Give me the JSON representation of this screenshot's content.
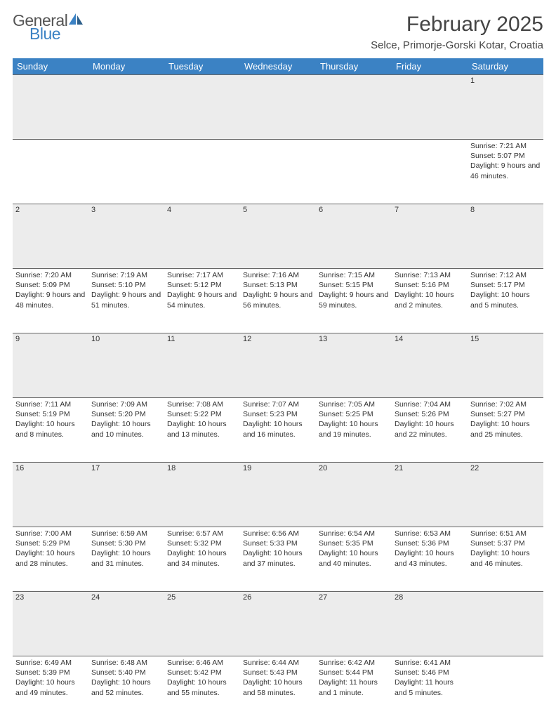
{
  "brand": {
    "line1": "General",
    "line2": "Blue"
  },
  "title": "February 2025",
  "location": "Selce, Primorje-Gorski Kotar, Croatia",
  "styling": {
    "header_bg": "#3b82c4",
    "header_text": "#ffffff",
    "daynum_bg": "#ececec",
    "divider": "#666666",
    "body_bg": "#ffffff",
    "text": "#333333",
    "brand_gray": "#555555",
    "brand_blue": "#3b82c4",
    "title_fontsize": 30,
    "location_fontsize": 15,
    "header_fontsize": 13,
    "cell_fontsize": 10.5
  },
  "days_of_week": [
    "Sunday",
    "Monday",
    "Tuesday",
    "Wednesday",
    "Thursday",
    "Friday",
    "Saturday"
  ],
  "weeks": [
    {
      "nums": [
        "",
        "",
        "",
        "",
        "",
        "",
        "1"
      ],
      "cells": [
        null,
        null,
        null,
        null,
        null,
        null,
        {
          "sunrise": "Sunrise: 7:21 AM",
          "sunset": "Sunset: 5:07 PM",
          "daylight": "Daylight: 9 hours and 46 minutes."
        }
      ]
    },
    {
      "nums": [
        "2",
        "3",
        "4",
        "5",
        "6",
        "7",
        "8"
      ],
      "cells": [
        {
          "sunrise": "Sunrise: 7:20 AM",
          "sunset": "Sunset: 5:09 PM",
          "daylight": "Daylight: 9 hours and 48 minutes."
        },
        {
          "sunrise": "Sunrise: 7:19 AM",
          "sunset": "Sunset: 5:10 PM",
          "daylight": "Daylight: 9 hours and 51 minutes."
        },
        {
          "sunrise": "Sunrise: 7:17 AM",
          "sunset": "Sunset: 5:12 PM",
          "daylight": "Daylight: 9 hours and 54 minutes."
        },
        {
          "sunrise": "Sunrise: 7:16 AM",
          "sunset": "Sunset: 5:13 PM",
          "daylight": "Daylight: 9 hours and 56 minutes."
        },
        {
          "sunrise": "Sunrise: 7:15 AM",
          "sunset": "Sunset: 5:15 PM",
          "daylight": "Daylight: 9 hours and 59 minutes."
        },
        {
          "sunrise": "Sunrise: 7:13 AM",
          "sunset": "Sunset: 5:16 PM",
          "daylight": "Daylight: 10 hours and 2 minutes."
        },
        {
          "sunrise": "Sunrise: 7:12 AM",
          "sunset": "Sunset: 5:17 PM",
          "daylight": "Daylight: 10 hours and 5 minutes."
        }
      ]
    },
    {
      "nums": [
        "9",
        "10",
        "11",
        "12",
        "13",
        "14",
        "15"
      ],
      "cells": [
        {
          "sunrise": "Sunrise: 7:11 AM",
          "sunset": "Sunset: 5:19 PM",
          "daylight": "Daylight: 10 hours and 8 minutes."
        },
        {
          "sunrise": "Sunrise: 7:09 AM",
          "sunset": "Sunset: 5:20 PM",
          "daylight": "Daylight: 10 hours and 10 minutes."
        },
        {
          "sunrise": "Sunrise: 7:08 AM",
          "sunset": "Sunset: 5:22 PM",
          "daylight": "Daylight: 10 hours and 13 minutes."
        },
        {
          "sunrise": "Sunrise: 7:07 AM",
          "sunset": "Sunset: 5:23 PM",
          "daylight": "Daylight: 10 hours and 16 minutes."
        },
        {
          "sunrise": "Sunrise: 7:05 AM",
          "sunset": "Sunset: 5:25 PM",
          "daylight": "Daylight: 10 hours and 19 minutes."
        },
        {
          "sunrise": "Sunrise: 7:04 AM",
          "sunset": "Sunset: 5:26 PM",
          "daylight": "Daylight: 10 hours and 22 minutes."
        },
        {
          "sunrise": "Sunrise: 7:02 AM",
          "sunset": "Sunset: 5:27 PM",
          "daylight": "Daylight: 10 hours and 25 minutes."
        }
      ]
    },
    {
      "nums": [
        "16",
        "17",
        "18",
        "19",
        "20",
        "21",
        "22"
      ],
      "cells": [
        {
          "sunrise": "Sunrise: 7:00 AM",
          "sunset": "Sunset: 5:29 PM",
          "daylight": "Daylight: 10 hours and 28 minutes."
        },
        {
          "sunrise": "Sunrise: 6:59 AM",
          "sunset": "Sunset: 5:30 PM",
          "daylight": "Daylight: 10 hours and 31 minutes."
        },
        {
          "sunrise": "Sunrise: 6:57 AM",
          "sunset": "Sunset: 5:32 PM",
          "daylight": "Daylight: 10 hours and 34 minutes."
        },
        {
          "sunrise": "Sunrise: 6:56 AM",
          "sunset": "Sunset: 5:33 PM",
          "daylight": "Daylight: 10 hours and 37 minutes."
        },
        {
          "sunrise": "Sunrise: 6:54 AM",
          "sunset": "Sunset: 5:35 PM",
          "daylight": "Daylight: 10 hours and 40 minutes."
        },
        {
          "sunrise": "Sunrise: 6:53 AM",
          "sunset": "Sunset: 5:36 PM",
          "daylight": "Daylight: 10 hours and 43 minutes."
        },
        {
          "sunrise": "Sunrise: 6:51 AM",
          "sunset": "Sunset: 5:37 PM",
          "daylight": "Daylight: 10 hours and 46 minutes."
        }
      ]
    },
    {
      "nums": [
        "23",
        "24",
        "25",
        "26",
        "27",
        "28",
        ""
      ],
      "cells": [
        {
          "sunrise": "Sunrise: 6:49 AM",
          "sunset": "Sunset: 5:39 PM",
          "daylight": "Daylight: 10 hours and 49 minutes."
        },
        {
          "sunrise": "Sunrise: 6:48 AM",
          "sunset": "Sunset: 5:40 PM",
          "daylight": "Daylight: 10 hours and 52 minutes."
        },
        {
          "sunrise": "Sunrise: 6:46 AM",
          "sunset": "Sunset: 5:42 PM",
          "daylight": "Daylight: 10 hours and 55 minutes."
        },
        {
          "sunrise": "Sunrise: 6:44 AM",
          "sunset": "Sunset: 5:43 PM",
          "daylight": "Daylight: 10 hours and 58 minutes."
        },
        {
          "sunrise": "Sunrise: 6:42 AM",
          "sunset": "Sunset: 5:44 PM",
          "daylight": "Daylight: 11 hours and 1 minute."
        },
        {
          "sunrise": "Sunrise: 6:41 AM",
          "sunset": "Sunset: 5:46 PM",
          "daylight": "Daylight: 11 hours and 5 minutes."
        },
        null
      ]
    }
  ]
}
